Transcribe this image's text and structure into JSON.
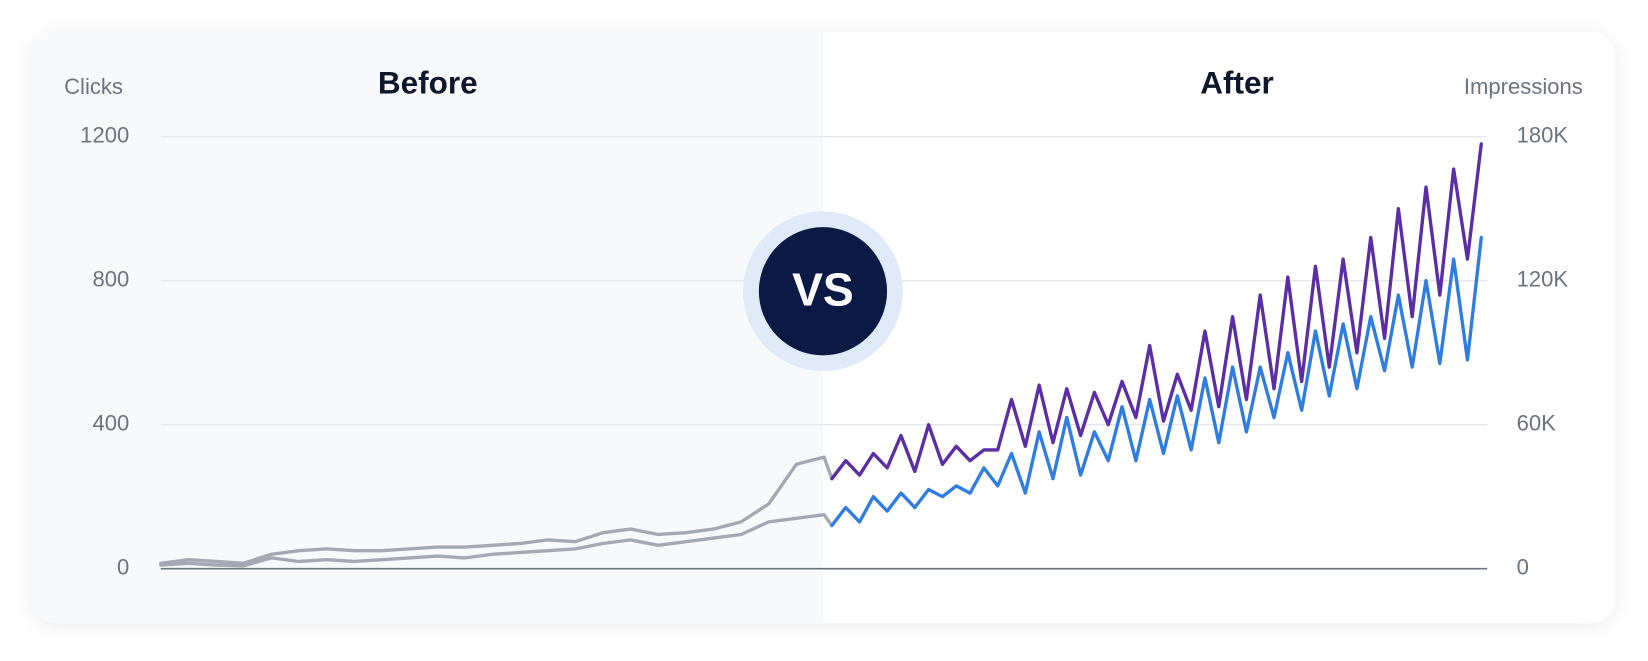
{
  "chart_data": {
    "type": "line",
    "section_labels": [
      "Before",
      "After"
    ],
    "center_label": "VS",
    "ylabel": "Clicks",
    "y2label": "Impressions",
    "xlim": [
      0,
      336
    ],
    "ylim": [
      0,
      1200
    ],
    "yticks": [
      0,
      400,
      800,
      1200
    ],
    "y2lim": [
      0,
      180000
    ],
    "y2ticks": [
      0,
      {
        "value": 60000,
        "label": "60K"
      },
      {
        "value": 120000,
        "label": "120K"
      },
      {
        "value": 180000,
        "label": "180K"
      }
    ],
    "grid": true,
    "series": [
      {
        "axis": "y2",
        "color": "#a3a8b3",
        "x": [
          0,
          7,
          14,
          21,
          28,
          35,
          42,
          49,
          56,
          63,
          70,
          77,
          84,
          91,
          98,
          105,
          112,
          119,
          126,
          133,
          140,
          147,
          154,
          161,
          168,
          170
        ],
        "values": [
          2250,
          3750,
          3000,
          2250,
          6000,
          7500,
          8250,
          7500,
          7500,
          8250,
          9000,
          9000,
          9750,
          10500,
          12000,
          11250,
          15000,
          16500,
          14250,
          15000,
          16500,
          19500,
          27000,
          43500,
          46500,
          37500
        ]
      },
      {
        "axis": "y",
        "color": "#a3a8b3",
        "x": [
          0,
          7,
          14,
          21,
          28,
          35,
          42,
          49,
          56,
          63,
          70,
          77,
          84,
          91,
          98,
          105,
          112,
          119,
          126,
          133,
          140,
          147,
          154,
          161,
          168,
          170
        ],
        "values": [
          10,
          15,
          10,
          8,
          30,
          20,
          25,
          20,
          25,
          30,
          35,
          30,
          40,
          45,
          50,
          55,
          70,
          80,
          65,
          75,
          85,
          95,
          130,
          140,
          150,
          120
        ]
      },
      {
        "axis": "y2",
        "color": "#5b2ea6",
        "x": [
          170,
          173.5,
          177,
          180.5,
          184,
          187.5,
          191,
          194.5,
          198,
          201.5,
          205,
          208.5,
          212,
          215.5,
          219,
          222.5,
          226,
          229.5,
          233,
          236.5,
          240,
          243.5,
          247,
          250.5,
          254,
          257.5,
          261,
          264.5,
          268,
          271.5,
          275,
          278.5,
          282,
          285.5,
          289,
          292.5,
          296,
          299.5,
          303,
          306.5,
          310,
          313.5,
          317,
          320.5,
          324,
          327.5,
          331,
          334.5
        ],
        "values": [
          37500,
          45000,
          39000,
          48000,
          42000,
          55500,
          40500,
          60000,
          43500,
          51000,
          45000,
          49500,
          49500,
          70500,
          51000,
          76500,
          52500,
          75000,
          55500,
          73500,
          60000,
          78000,
          63000,
          93000,
          61500,
          81000,
          66000,
          99000,
          67500,
          105000,
          70500,
          114000,
          75000,
          121500,
          78000,
          126000,
          84000,
          129000,
          90000,
          138000,
          96000,
          150000,
          105000,
          159000,
          114000,
          166500,
          129000,
          177000
        ]
      },
      {
        "axis": "y",
        "color": "#2f7de1",
        "x": [
          170,
          173.5,
          177,
          180.5,
          184,
          187.5,
          191,
          194.5,
          198,
          201.5,
          205,
          208.5,
          212,
          215.5,
          219,
          222.5,
          226,
          229.5,
          233,
          236.5,
          240,
          243.5,
          247,
          250.5,
          254,
          257.5,
          261,
          264.5,
          268,
          271.5,
          275,
          278.5,
          282,
          285.5,
          289,
          292.5,
          296,
          299.5,
          303,
          306.5,
          310,
          313.5,
          317,
          320.5,
          324,
          327.5,
          331,
          334.5
        ],
        "values": [
          120,
          170,
          130,
          200,
          160,
          210,
          170,
          220,
          200,
          230,
          210,
          280,
          230,
          320,
          210,
          380,
          250,
          420,
          260,
          380,
          300,
          450,
          300,
          470,
          320,
          480,
          330,
          530,
          350,
          560,
          380,
          560,
          420,
          600,
          440,
          660,
          480,
          680,
          500,
          700,
          550,
          760,
          560,
          800,
          570,
          860,
          580,
          920
        ]
      }
    ]
  }
}
